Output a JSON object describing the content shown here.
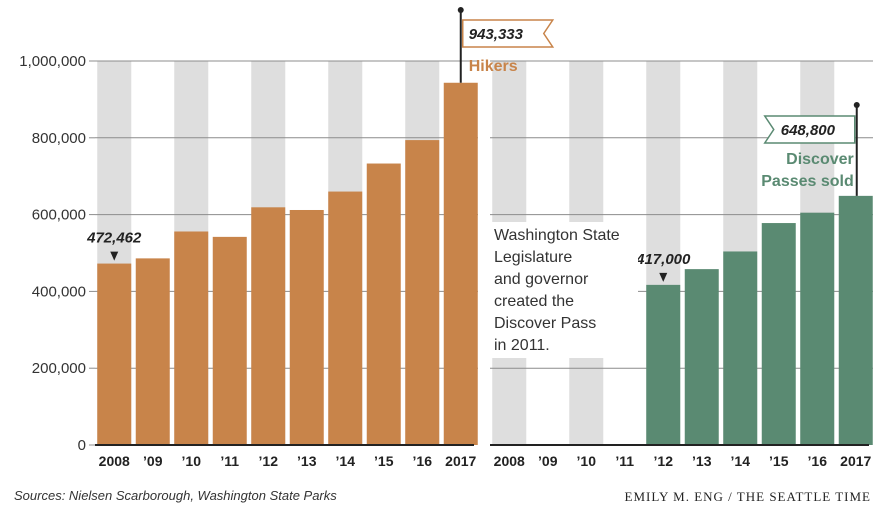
{
  "chart_data": {
    "type": "bar",
    "ylim": [
      0,
      1000000
    ],
    "yticks": [
      0,
      200000,
      400000,
      600000,
      800000,
      1000000
    ],
    "ytick_labels": [
      "0",
      "200,000",
      "400,000",
      "600,000",
      "800,000",
      "1,000,000"
    ],
    "panels": [
      {
        "series_name": "Hikers",
        "color": "#c8844a",
        "categories": [
          "2008",
          "'09",
          "'10",
          "'11",
          "'12",
          "'13",
          "'14",
          "'15",
          "'16",
          "2017"
        ],
        "values": [
          472462,
          486000,
          556000,
          542000,
          619000,
          612000,
          660000,
          733000,
          794000,
          943333
        ],
        "callouts": [
          {
            "label": "472,462",
            "index": 0
          },
          {
            "label": "943,333",
            "index": 9
          }
        ]
      },
      {
        "series_name": "Discover Passes sold",
        "series_name_lines": [
          "Discover",
          "Passes sold"
        ],
        "color": "#5a8a72",
        "categories": [
          "2008",
          "'09",
          "'10",
          "'11",
          "'12",
          "'13",
          "'14",
          "'15",
          "'16",
          "2017"
        ],
        "values": [
          null,
          null,
          null,
          null,
          417000,
          458000,
          504000,
          578000,
          605000,
          648800
        ],
        "callouts": [
          {
            "label": "417,000",
            "index": 4
          },
          {
            "label": "648,800",
            "index": 9
          }
        ],
        "annotation": [
          "Washington State",
          "Legislature",
          "and governor",
          "created the",
          "Discover Pass",
          "in 2011."
        ]
      }
    ]
  },
  "footer": {
    "source": "Sources: Nielsen Scarborough, Washington State Parks",
    "credit": "EMILY M. ENG / THE SEATTLE TIME"
  }
}
